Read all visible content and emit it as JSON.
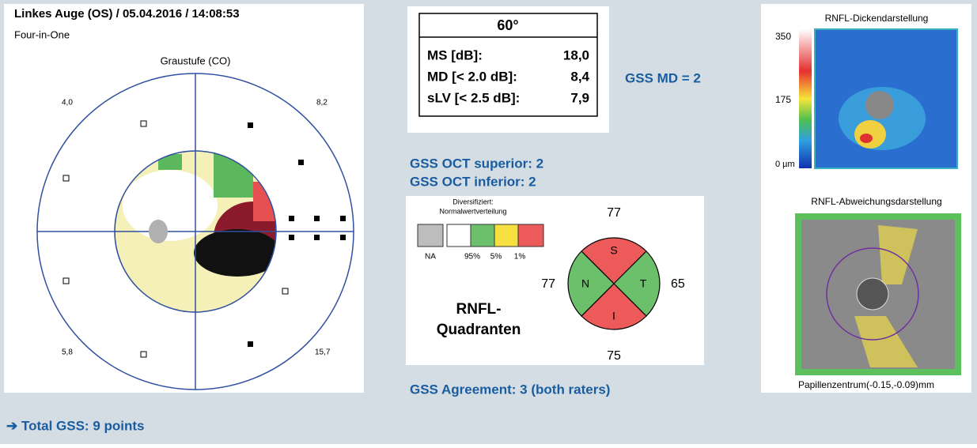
{
  "left_panel": {
    "title": "Linkes Auge (OS) / 05.04.2016 / 14:08:53",
    "subtitle": "Four-in-One",
    "plot_title": "Graustufe (CO)",
    "quadrant_values": [
      "4,0",
      "8,2",
      "5,8",
      "15,7"
    ]
  },
  "table": {
    "header": "60°",
    "rows": [
      [
        "MS [dB]:",
        "18,0"
      ],
      [
        "MD [< 2.0 dB]:",
        "8,4"
      ],
      [
        "sLV [< 2.5 dB]:",
        "7,9"
      ]
    ]
  },
  "gss_md": "GSS MD = 2",
  "gss_oct": [
    "GSS OCT superior: 2",
    "GSS OCT inferior: 2"
  ],
  "rnfl_quadrants": {
    "legend_title": [
      "Diversifiziert:",
      "Normalwertverteilung"
    ],
    "legend_labels": [
      "NA",
      "95%",
      "5%",
      "1%"
    ],
    "title": [
      "RNFL-",
      "Quadranten"
    ],
    "letters": [
      "S",
      "N",
      "T",
      "I"
    ],
    "values": [
      "77",
      "77",
      "65",
      "75"
    ]
  },
  "gss_agreement": "GSS Agreement: 3 (both raters)",
  "right_panel": {
    "thickness_title": "RNFL-Dickendarstellung",
    "scale": [
      "350",
      "175",
      "0 µm"
    ],
    "deviation_title": "RNFL-Abweichungsdarstellung",
    "center_note": "Papillenzentrum(-0.15,-0.09)mm"
  },
  "footer": "➔ Total GSS: 9 points"
}
